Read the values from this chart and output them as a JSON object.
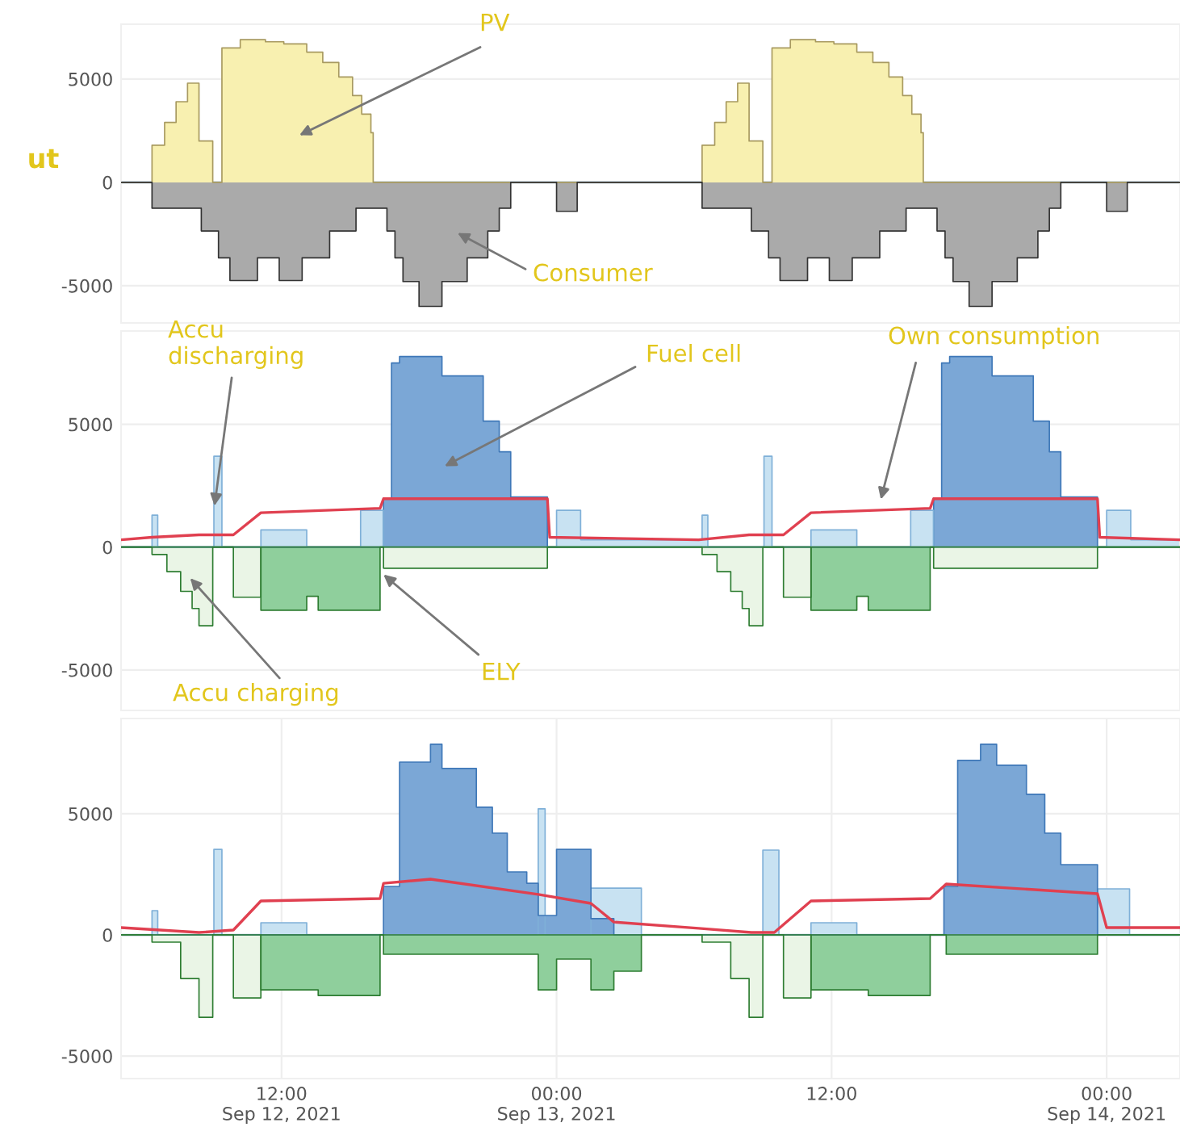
{
  "chart_data": [
    {
      "type": "area",
      "ylabel": "ut",
      "xlim": [
        "2021-09-12T05:00",
        "2021-09-14T03:12"
      ],
      "ylim": [
        -6800,
        7650
      ],
      "yticks": [
        -5000,
        0,
        5000
      ],
      "tick_labels": "y",
      "grid": "y",
      "series": [
        {
          "color": "#f8f0b0",
          "x": [
            "2021-09-12T05:00",
            "2021-09-12T06:21",
            "2021-09-12T06:54",
            "2021-09-12T07:24",
            "2021-09-12T07:54",
            "2021-09-12T08:24",
            "2021-09-12T09:00",
            "2021-09-12T09:24",
            "2021-09-12T10:12",
            "2021-09-12T11:18",
            "2021-09-12T12:06",
            "2021-09-12T13:06",
            "2021-09-12T13:48",
            "2021-09-12T14:30",
            "2021-09-12T15:06",
            "2021-09-12T15:30",
            "2021-09-12T15:54",
            "2021-09-12T16:00",
            "2021-09-13T06:21",
            "2021-09-13T06:54",
            "2021-09-13T07:24",
            "2021-09-13T07:54",
            "2021-09-13T08:24",
            "2021-09-13T09:00",
            "2021-09-13T09:24",
            "2021-09-13T10:12",
            "2021-09-13T11:18",
            "2021-09-13T12:06",
            "2021-09-13T13:06",
            "2021-09-13T13:48",
            "2021-09-13T14:30",
            "2021-09-13T15:06",
            "2021-09-13T15:30",
            "2021-09-13T15:54",
            "2021-09-13T16:00",
            "2021-09-14T03:12"
          ],
          "values": [
            0,
            1800,
            2900,
            3900,
            4800,
            2000,
            0,
            6500,
            6900,
            6800,
            6700,
            6300,
            5800,
            5100,
            4200,
            3300,
            2400,
            0,
            1800,
            2900,
            3900,
            4800,
            2000,
            0,
            6500,
            6900,
            6800,
            6700,
            6300,
            5800,
            5100,
            4200,
            3300,
            2400,
            0,
            0
          ]
        },
        {
          "color": "#aaaaaa",
          "x": [
            "2021-09-12T05:00",
            "2021-09-12T06:21",
            "2021-09-12T08:30",
            "2021-09-12T09:15",
            "2021-09-12T09:45",
            "2021-09-12T10:57",
            "2021-09-12T11:54",
            "2021-09-12T12:54",
            "2021-09-12T14:06",
            "2021-09-12T15:15",
            "2021-09-12T16:36",
            "2021-09-12T16:57",
            "2021-09-12T17:18",
            "2021-09-12T18:00",
            "2021-09-12T19:00",
            "2021-09-12T20:06",
            "2021-09-12T21:00",
            "2021-09-12T21:30",
            "2021-09-12T22:00",
            "2021-09-13T00:00",
            "2021-09-13T00:54",
            "2021-09-13T06:21",
            "2021-09-13T08:30",
            "2021-09-13T09:15",
            "2021-09-13T09:45",
            "2021-09-13T10:57",
            "2021-09-13T11:54",
            "2021-09-13T12:54",
            "2021-09-13T14:06",
            "2021-09-13T15:15",
            "2021-09-13T16:36",
            "2021-09-13T16:57",
            "2021-09-13T17:18",
            "2021-09-13T18:00",
            "2021-09-13T19:00",
            "2021-09-13T20:06",
            "2021-09-13T21:00",
            "2021-09-13T21:30",
            "2021-09-13T22:00",
            "2021-09-14T00:00",
            "2021-09-14T00:54",
            "2021-09-14T03:12"
          ],
          "values": [
            0,
            -1250,
            -2350,
            -3650,
            -4750,
            -3650,
            -4750,
            -3650,
            -2350,
            -1250,
            -2350,
            -3650,
            -4800,
            -6000,
            -4800,
            -3650,
            -2350,
            -1250,
            0,
            -1400,
            0,
            -1250,
            -2350,
            -3650,
            -4750,
            -3650,
            -4750,
            -3650,
            -2350,
            -1250,
            -2350,
            -3650,
            -4800,
            -6000,
            -4800,
            -3650,
            -2350,
            -1250,
            0,
            -1400,
            0,
            0
          ]
        }
      ],
      "annotations": [
        "PV",
        "Consumer"
      ]
    },
    {
      "type": "area",
      "xlim": [
        "2021-09-12T05:00",
        "2021-09-14T03:12"
      ],
      "ylim": [
        -6650,
        8800
      ],
      "yticks": [
        -5000,
        0,
        5000
      ],
      "tick_labels": "y",
      "grid": "y",
      "series": [
        {
          "color": "#7ba7d6",
          "x": [
            "2021-09-12T05:00",
            "2021-09-12T16:27",
            "2021-09-12T16:48",
            "2021-09-12T17:09",
            "2021-09-12T19:00",
            "2021-09-12T20:48",
            "2021-09-12T21:30",
            "2021-09-12T22:00",
            "2021-09-12T23:36",
            "2021-09-13T16:27",
            "2021-09-13T16:48",
            "2021-09-13T17:09",
            "2021-09-13T19:00",
            "2021-09-13T20:48",
            "2021-09-13T21:30",
            "2021-09-13T22:00",
            "2021-09-13T23:36",
            "2021-09-14T03:12"
          ],
          "values": [
            0,
            2000,
            7500,
            7760,
            6970,
            5130,
            3880,
            2040,
            0,
            2000,
            7500,
            7760,
            6970,
            5130,
            3880,
            2040,
            0,
            0
          ]
        },
        {
          "color": "#c8e2f2",
          "x": [
            "2021-09-12T05:00",
            "2021-09-12T06:21",
            "2021-09-12T06:36",
            "2021-09-12T09:03",
            "2021-09-12T09:24",
            "2021-09-12T11:06",
            "2021-09-12T13:06",
            "2021-09-12T15:27",
            "2021-09-12T16:27",
            "2021-09-13T00:00",
            "2021-09-13T01:03",
            "2021-09-13T06:21",
            "2021-09-13T06:36",
            "2021-09-13T09:03",
            "2021-09-13T09:24",
            "2021-09-13T11:06",
            "2021-09-13T13:06",
            "2021-09-13T15:27",
            "2021-09-13T16:27",
            "2021-09-14T00:00",
            "2021-09-14T01:03",
            "2021-09-14T03:12"
          ],
          "values": [
            0,
            1300,
            0,
            3700,
            0,
            700,
            0,
            1500,
            0,
            1500,
            300,
            1300,
            0,
            3700,
            0,
            700,
            0,
            1500,
            0,
            1500,
            300,
            300
          ]
        },
        {
          "color": "#8fcf9c",
          "x": [
            "2021-09-12T05:00",
            "2021-09-12T11:06",
            "2021-09-12T13:06",
            "2021-09-12T13:36",
            "2021-09-12T16:18",
            "2021-09-13T11:06",
            "2021-09-13T13:06",
            "2021-09-13T13:36",
            "2021-09-13T16:18",
            "2021-09-14T03:12"
          ],
          "values": [
            0,
            -2570,
            -2000,
            -2570,
            0,
            -2570,
            -2000,
            -2570,
            0,
            0
          ]
        },
        {
          "color": "#eaf5e6",
          "x": [
            "2021-09-12T05:00",
            "2021-09-12T06:21",
            "2021-09-12T07:00",
            "2021-09-12T07:36",
            "2021-09-12T08:06",
            "2021-09-12T08:24",
            "2021-09-12T09:00",
            "2021-09-12T09:54",
            "2021-09-12T11:06",
            "2021-09-12T16:27",
            "2021-09-12T23:36",
            "2021-09-13T06:21",
            "2021-09-13T07:00",
            "2021-09-13T07:36",
            "2021-09-13T08:06",
            "2021-09-13T08:24",
            "2021-09-13T09:00",
            "2021-09-13T09:54",
            "2021-09-13T11:06",
            "2021-09-13T16:27",
            "2021-09-13T23:36",
            "2021-09-14T03:12"
          ],
          "values": [
            0,
            -300,
            -1000,
            -1800,
            -2500,
            -3200,
            0,
            -2040,
            0,
            -860,
            0,
            -300,
            -1000,
            -1800,
            -2500,
            -3200,
            0,
            -2040,
            0,
            -860,
            0,
            0
          ]
        },
        {
          "type": "line",
          "color": "#e04050",
          "x": [
            "2021-09-12T05:00",
            "2021-09-12T06:21",
            "2021-09-12T08:24",
            "2021-09-12T09:54",
            "2021-09-12T11:06",
            "2021-09-12T16:18",
            "2021-09-12T16:27",
            "2021-09-12T23:36",
            "2021-09-12T23:42",
            "2021-09-13T06:12",
            "2021-09-13T08:24",
            "2021-09-13T09:54",
            "2021-09-13T11:06",
            "2021-09-13T16:18",
            "2021-09-13T16:27",
            "2021-09-13T23:36",
            "2021-09-13T23:42",
            "2021-09-14T03:12"
          ],
          "values": [
            300,
            400,
            500,
            500,
            1400,
            1580,
            1970,
            1970,
            400,
            300,
            500,
            500,
            1400,
            1580,
            1970,
            1970,
            400,
            300
          ]
        }
      ],
      "annotations": [
        {
          "text": "Accu\ndischarging",
          "x": "2021-09-12T09:03",
          "y": 1500
        },
        "Fuel cell",
        "Own consumption",
        {
          "text": "ELY",
          "x": "2021-09-12T16:18",
          "y": -1000
        },
        "Accu charging"
      ]
    },
    {
      "type": "area",
      "xlim": [
        "2021-09-12T05:00",
        "2021-09-14T03:12"
      ],
      "ylim": [
        -5930,
        8930
      ],
      "yticks": [
        -5000,
        0,
        5000
      ],
      "grid": true,
      "xticks": [
        {
          "value": "2021-09-12T12:00",
          "label": "12:00\nSep 12, 2021"
        },
        {
          "value": "2021-09-13T00:00",
          "label": "00:00\nSep 13, 2021"
        },
        {
          "value": "2021-09-13T12:00",
          "label": "12:00"
        },
        {
          "value": "2021-09-14T00:00",
          "label": "00:00\nSep 14, 2021"
        }
      ],
      "series": [
        {
          "color": "#c8e2f2",
          "x": [
            "2021-09-12T05:00",
            "2021-09-12T06:21",
            "2021-09-12T06:36",
            "2021-09-12T09:03",
            "2021-09-12T09:24",
            "2021-09-12T11:06",
            "2021-09-12T13:06",
            "2021-09-12T23:12",
            "2021-09-12T23:30",
            "2021-09-13T01:30",
            "2021-09-13T03:42",
            "2021-09-13T09:00",
            "2021-09-13T09:42",
            "2021-09-13T11:06",
            "2021-09-13T13:06",
            "2021-09-13T23:36",
            "2021-09-14T01:00",
            "2021-09-14T03:12"
          ],
          "values": [
            0,
            1000,
            0,
            3530,
            0,
            500,
            0,
            5200,
            0,
            1930,
            0,
            3500,
            0,
            500,
            0,
            1900,
            0,
            0
          ]
        },
        {
          "color": "#7ba7d6",
          "x": [
            "2021-09-12T05:00",
            "2021-09-12T16:27",
            "2021-09-12T17:09",
            "2021-09-12T18:30",
            "2021-09-12T19:00",
            "2021-09-12T20:30",
            "2021-09-12T21:12",
            "2021-09-12T21:51",
            "2021-09-12T22:42",
            "2021-09-12T23:12",
            "2021-09-13T00:00",
            "2021-09-13T01:30",
            "2021-09-13T02:30",
            "2021-09-13T16:54",
            "2021-09-13T17:30",
            "2021-09-13T18:30",
            "2021-09-13T19:12",
            "2021-09-13T20:30",
            "2021-09-13T21:18",
            "2021-09-13T22:00",
            "2021-09-13T23:36",
            "2021-09-14T03:12"
          ],
          "values": [
            0,
            2000,
            7130,
            7870,
            6870,
            5270,
            4200,
            2600,
            2130,
            800,
            3530,
            670,
            0,
            2000,
            7200,
            7870,
            7000,
            5800,
            4200,
            2900,
            0,
            0
          ]
        },
        {
          "color": "#8fcf9c",
          "x": [
            "2021-09-12T05:00",
            "2021-09-12T11:06",
            "2021-09-12T13:36",
            "2021-09-12T16:18",
            "2021-09-12T16:27",
            "2021-09-12T23:12",
            "2021-09-13T00:00",
            "2021-09-13T01:30",
            "2021-09-13T02:30",
            "2021-09-13T03:42",
            "2021-09-13T11:06",
            "2021-09-13T13:36",
            "2021-09-13T16:18",
            "2021-09-13T17:00",
            "2021-09-13T23:36",
            "2021-09-14T03:12"
          ],
          "values": [
            0,
            -2270,
            -2500,
            0,
            -800,
            -2270,
            -1000,
            -2270,
            -1500,
            0,
            -2270,
            -2500,
            0,
            -800,
            0,
            0
          ]
        },
        {
          "color": "#eaf5e6",
          "x": [
            "2021-09-12T05:00",
            "2021-09-12T06:21",
            "2021-09-12T07:36",
            "2021-09-12T08:24",
            "2021-09-12T09:00",
            "2021-09-12T09:54",
            "2021-09-12T11:06",
            "2021-09-13T06:21",
            "2021-09-13T07:36",
            "2021-09-13T08:24",
            "2021-09-13T09:00",
            "2021-09-13T09:54",
            "2021-09-13T11:06",
            "2021-09-14T03:12"
          ],
          "values": [
            0,
            -300,
            -1800,
            -3400,
            0,
            -2600,
            0,
            -300,
            -1800,
            -3400,
            0,
            -2600,
            0,
            0
          ]
        },
        {
          "type": "line",
          "color": "#e04050",
          "x": [
            "2021-09-12T05:00",
            "2021-09-12T08:24",
            "2021-09-12T09:54",
            "2021-09-12T11:06",
            "2021-09-12T16:18",
            "2021-09-12T16:27",
            "2021-09-12T18:30",
            "2021-09-12T23:12",
            "2021-09-13T01:30",
            "2021-09-13T02:30",
            "2021-09-13T06:12",
            "2021-09-13T08:30",
            "2021-09-13T09:30",
            "2021-09-13T11:06",
            "2021-09-13T16:18",
            "2021-09-13T17:00",
            "2021-09-13T23:36",
            "2021-09-14T00:00",
            "2021-09-14T03:12"
          ],
          "values": [
            300,
            100,
            200,
            1400,
            1500,
            2130,
            2300,
            1670,
            1300,
            530,
            270,
            100,
            100,
            1400,
            1500,
            2100,
            1700,
            300,
            300
          ]
        }
      ]
    }
  ]
}
